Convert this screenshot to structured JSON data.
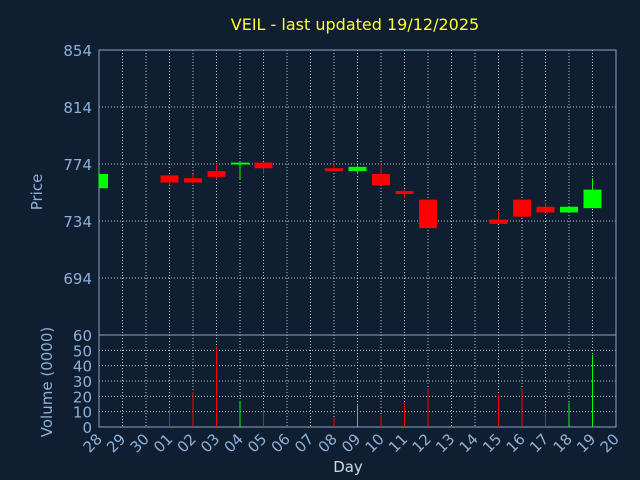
{
  "chart_data": {
    "type": "candlestick",
    "title": "VEIL - last updated 19/12/2025",
    "xlabel": "Day",
    "price_ylabel": "Price",
    "volume_ylabel": "Volume (0000)",
    "price_ylim": [
      654,
      854
    ],
    "price_ticks": [
      "854",
      "814",
      "774",
      "734",
      "694"
    ],
    "volume_ylim": [
      0,
      60
    ],
    "volume_ticks": [
      "0",
      "10",
      "20",
      "30",
      "40",
      "50",
      "60"
    ],
    "grid": true,
    "x_labels": [
      "28",
      "29",
      "30",
      "01",
      "02",
      "03",
      "04",
      "05",
      "06",
      "07",
      "08",
      "09",
      "10",
      "11",
      "12",
      "13",
      "14",
      "15",
      "16",
      "17",
      "18",
      "19",
      "20"
    ],
    "candles": [
      {
        "day": "28",
        "open": 757,
        "close": 767,
        "high": 767,
        "low": 757,
        "volume": 0,
        "dir": "up"
      },
      {
        "day": "01",
        "open": 766,
        "close": 761,
        "high": 766,
        "low": 759,
        "volume": 11,
        "dir": "down"
      },
      {
        "day": "02",
        "open": 764,
        "close": 761,
        "high": 767,
        "low": 760,
        "volume": 23,
        "dir": "down"
      },
      {
        "day": "03",
        "open": 769,
        "close": 765,
        "high": 774,
        "low": 763,
        "volume": 52,
        "dir": "down"
      },
      {
        "day": "04",
        "open": 774,
        "close": 775,
        "high": 775,
        "low": 763,
        "volume": 17,
        "dir": "up"
      },
      {
        "day": "05",
        "open": 775,
        "close": 771,
        "high": 775,
        "low": 767,
        "volume": 11,
        "dir": "down"
      },
      {
        "day": "08",
        "open": 771,
        "close": 769,
        "high": 774,
        "low": 769,
        "volume": 6,
        "dir": "down"
      },
      {
        "day": "09",
        "open": 769,
        "close": 772,
        "high": 773,
        "low": 767,
        "volume": 14,
        "dir": "up"
      },
      {
        "day": "10",
        "open": 767,
        "close": 759,
        "high": 774,
        "low": 759,
        "volume": 8,
        "dir": "down"
      },
      {
        "day": "11",
        "open": 755,
        "close": 753,
        "high": 756,
        "low": 750,
        "volume": 16,
        "dir": "down"
      },
      {
        "day": "12",
        "open": 749,
        "close": 729,
        "high": 749,
        "low": 729,
        "volume": 25,
        "dir": "down"
      },
      {
        "day": "15",
        "open": 735,
        "close": 732,
        "high": 741,
        "low": 732,
        "volume": 21,
        "dir": "down"
      },
      {
        "day": "16",
        "open": 749,
        "close": 737,
        "high": 749,
        "low": 737,
        "volume": 25,
        "dir": "down"
      },
      {
        "day": "17",
        "open": 744,
        "close": 740,
        "high": 747,
        "low": 740,
        "volume": 10,
        "dir": "down"
      },
      {
        "day": "18",
        "open": 740,
        "close": 744,
        "high": 744,
        "low": 740,
        "volume": 16,
        "dir": "up"
      },
      {
        "day": "19",
        "open": 743,
        "close": 756,
        "high": 764,
        "low": 743,
        "volume": 47,
        "dir": "up"
      }
    ],
    "colors": {
      "background": "#0f1f31",
      "up": "#00ff00",
      "down": "#ff0000",
      "title": "#ffff33",
      "axis_text": "#8fb0d8"
    }
  }
}
